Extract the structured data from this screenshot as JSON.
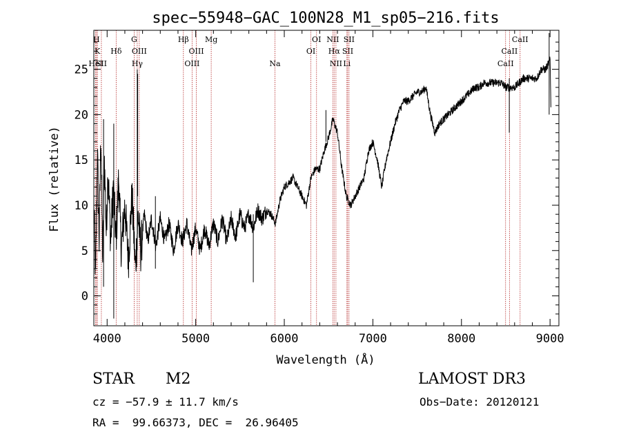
{
  "chart_data": {
    "type": "line",
    "title": "spec−55948−GAC_100N28_M1_sp05−216.fits",
    "xlabel": "Wavelength (Å)",
    "ylabel": "Flux (relative)",
    "xlim": [
      3850,
      9100
    ],
    "ylim": [
      -3.3,
      29.3
    ],
    "xticks": [
      4000,
      5000,
      6000,
      7000,
      8000,
      9000
    ],
    "yticks": [
      0,
      5,
      10,
      15,
      20,
      25
    ],
    "grid": false,
    "series": [
      {
        "name": "flux",
        "color": "#000000",
        "anchors": [
          [
            3850,
            10
          ],
          [
            3870,
            2
          ],
          [
            3890,
            16
          ],
          [
            3910,
            6
          ],
          [
            3930,
            18
          ],
          [
            3950,
            4
          ],
          [
            3970,
            15
          ],
          [
            3990,
            7
          ],
          [
            4010,
            14
          ],
          [
            4040,
            6
          ],
          [
            4070,
            12
          ],
          [
            4100,
            6
          ],
          [
            4130,
            13
          ],
          [
            4160,
            5
          ],
          [
            4200,
            10
          ],
          [
            4240,
            4
          ],
          [
            4280,
            11
          ],
          [
            4320,
            3
          ],
          [
            4350,
            9
          ],
          [
            4380,
            5
          ],
          [
            4420,
            9
          ],
          [
            4460,
            6
          ],
          [
            4500,
            8.5
          ],
          [
            4550,
            5.5
          ],
          [
            4600,
            8.5
          ],
          [
            4650,
            6
          ],
          [
            4700,
            8
          ],
          [
            4750,
            5
          ],
          [
            4800,
            8
          ],
          [
            4850,
            6
          ],
          [
            4900,
            8
          ],
          [
            4950,
            5
          ],
          [
            5000,
            7.5
          ],
          [
            5050,
            5
          ],
          [
            5100,
            7.5
          ],
          [
            5150,
            5.5
          ],
          [
            5200,
            8
          ],
          [
            5250,
            6
          ],
          [
            5300,
            8.5
          ],
          [
            5350,
            6
          ],
          [
            5400,
            8.5
          ],
          [
            5450,
            6.5
          ],
          [
            5500,
            9
          ],
          [
            5550,
            7.5
          ],
          [
            5600,
            9
          ],
          [
            5650,
            7.5
          ],
          [
            5700,
            9.5
          ],
          [
            5750,
            8.5
          ],
          [
            5800,
            9.5
          ],
          [
            5850,
            9
          ],
          [
            5900,
            8
          ],
          [
            5950,
            10.5
          ],
          [
            6000,
            12
          ],
          [
            6050,
            12.5
          ],
          [
            6100,
            13
          ],
          [
            6150,
            12
          ],
          [
            6200,
            11
          ],
          [
            6250,
            10
          ],
          [
            6300,
            13
          ],
          [
            6350,
            14
          ],
          [
            6400,
            14
          ],
          [
            6450,
            16
          ],
          [
            6500,
            17.5
          ],
          [
            6550,
            19.5
          ],
          [
            6600,
            18
          ],
          [
            6650,
            14
          ],
          [
            6700,
            11
          ],
          [
            6750,
            10
          ],
          [
            6800,
            11
          ],
          [
            6850,
            12
          ],
          [
            6900,
            13
          ],
          [
            6950,
            16
          ],
          [
            7000,
            17
          ],
          [
            7050,
            15
          ],
          [
            7100,
            12
          ],
          [
            7150,
            15
          ],
          [
            7200,
            17
          ],
          [
            7250,
            19
          ],
          [
            7300,
            20.5
          ],
          [
            7350,
            21.5
          ],
          [
            7400,
            21.5
          ],
          [
            7450,
            22
          ],
          [
            7500,
            22.5
          ],
          [
            7550,
            22.5
          ],
          [
            7600,
            23
          ],
          [
            7650,
            20
          ],
          [
            7700,
            18
          ],
          [
            7750,
            19
          ],
          [
            7800,
            19.5
          ],
          [
            7850,
            20
          ],
          [
            7900,
            20.5
          ],
          [
            7950,
            21
          ],
          [
            8000,
            21.5
          ],
          [
            8050,
            22
          ],
          [
            8100,
            22.5
          ],
          [
            8150,
            23
          ],
          [
            8200,
            23
          ],
          [
            8250,
            23.5
          ],
          [
            8300,
            23.5
          ],
          [
            8350,
            23.5
          ],
          [
            8400,
            23.5
          ],
          [
            8450,
            23.5
          ],
          [
            8500,
            23
          ],
          [
            8550,
            23
          ],
          [
            8600,
            23
          ],
          [
            8650,
            23.5
          ],
          [
            8700,
            24
          ],
          [
            8750,
            24
          ],
          [
            8800,
            24
          ],
          [
            8850,
            24
          ],
          [
            8900,
            25
          ],
          [
            8950,
            25
          ],
          [
            9000,
            26
          ],
          [
            9010,
            21
          ]
        ],
        "spikes": [
          [
            3960,
            1,
            19.5
          ],
          [
            4075,
            -2.5,
            19
          ],
          [
            4340,
            5,
            25
          ],
          [
            4345,
            11,
            24.5
          ],
          [
            4545,
            3,
            11
          ],
          [
            5650,
            1.5,
            9
          ],
          [
            6470,
            17,
            20.5
          ],
          [
            8540,
            18,
            24
          ],
          [
            8990,
            20,
            29
          ]
        ]
      }
    ],
    "lines": [
      {
        "x": 3880,
        "label": "H",
        "row": 0
      },
      {
        "x": 3890,
        "label": "K",
        "row": 1
      },
      {
        "x": 3870,
        "label": "HeI",
        "row": 2
      },
      {
        "x": 3935,
        "label": "SII",
        "row": 2
      },
      {
        "x": 4102,
        "label": "Hδ",
        "row": 1
      },
      {
        "x": 4305,
        "label": "G",
        "row": 0
      },
      {
        "x": 4340,
        "label": "Hγ",
        "row": 2
      },
      {
        "x": 4363,
        "label": "OIII",
        "row": 1
      },
      {
        "x": 4861,
        "label": "Hβ",
        "row": 0
      },
      {
        "x": 4959,
        "label": "OIII",
        "row": 2
      },
      {
        "x": 5007,
        "label": "OIII",
        "row": 1
      },
      {
        "x": 5175,
        "label": "Mg",
        "row": 0
      },
      {
        "x": 5894,
        "label": "Na",
        "row": 2
      },
      {
        "x": 6300,
        "label": "OI",
        "row": 1
      },
      {
        "x": 6364,
        "label": "OI",
        "row": 0
      },
      {
        "x": 6548,
        "label": "NII",
        "row": 0
      },
      {
        "x": 6563,
        "label": "Hα",
        "row": 1
      },
      {
        "x": 6583,
        "label": "NII",
        "row": 2
      },
      {
        "x": 6716,
        "label": "SII",
        "row": 1
      },
      {
        "x": 6707,
        "label": "Li",
        "row": 2
      },
      {
        "x": 6731,
        "label": "SII",
        "row": 0
      },
      {
        "x": 8498,
        "label": "CaII",
        "row": 2
      },
      {
        "x": 8542,
        "label": "CaII",
        "row": 1
      },
      {
        "x": 8662,
        "label": "CaII",
        "row": 0
      }
    ]
  },
  "info": {
    "object_type": "STAR",
    "subclass": "M2",
    "survey": "LAMOST DR3",
    "redshift": "cz = −57.9 ± 11.7 km/s",
    "obs_date": "Obs−Date: 20120121",
    "coords": "RA =  99.66373, DEC =  26.96405"
  }
}
